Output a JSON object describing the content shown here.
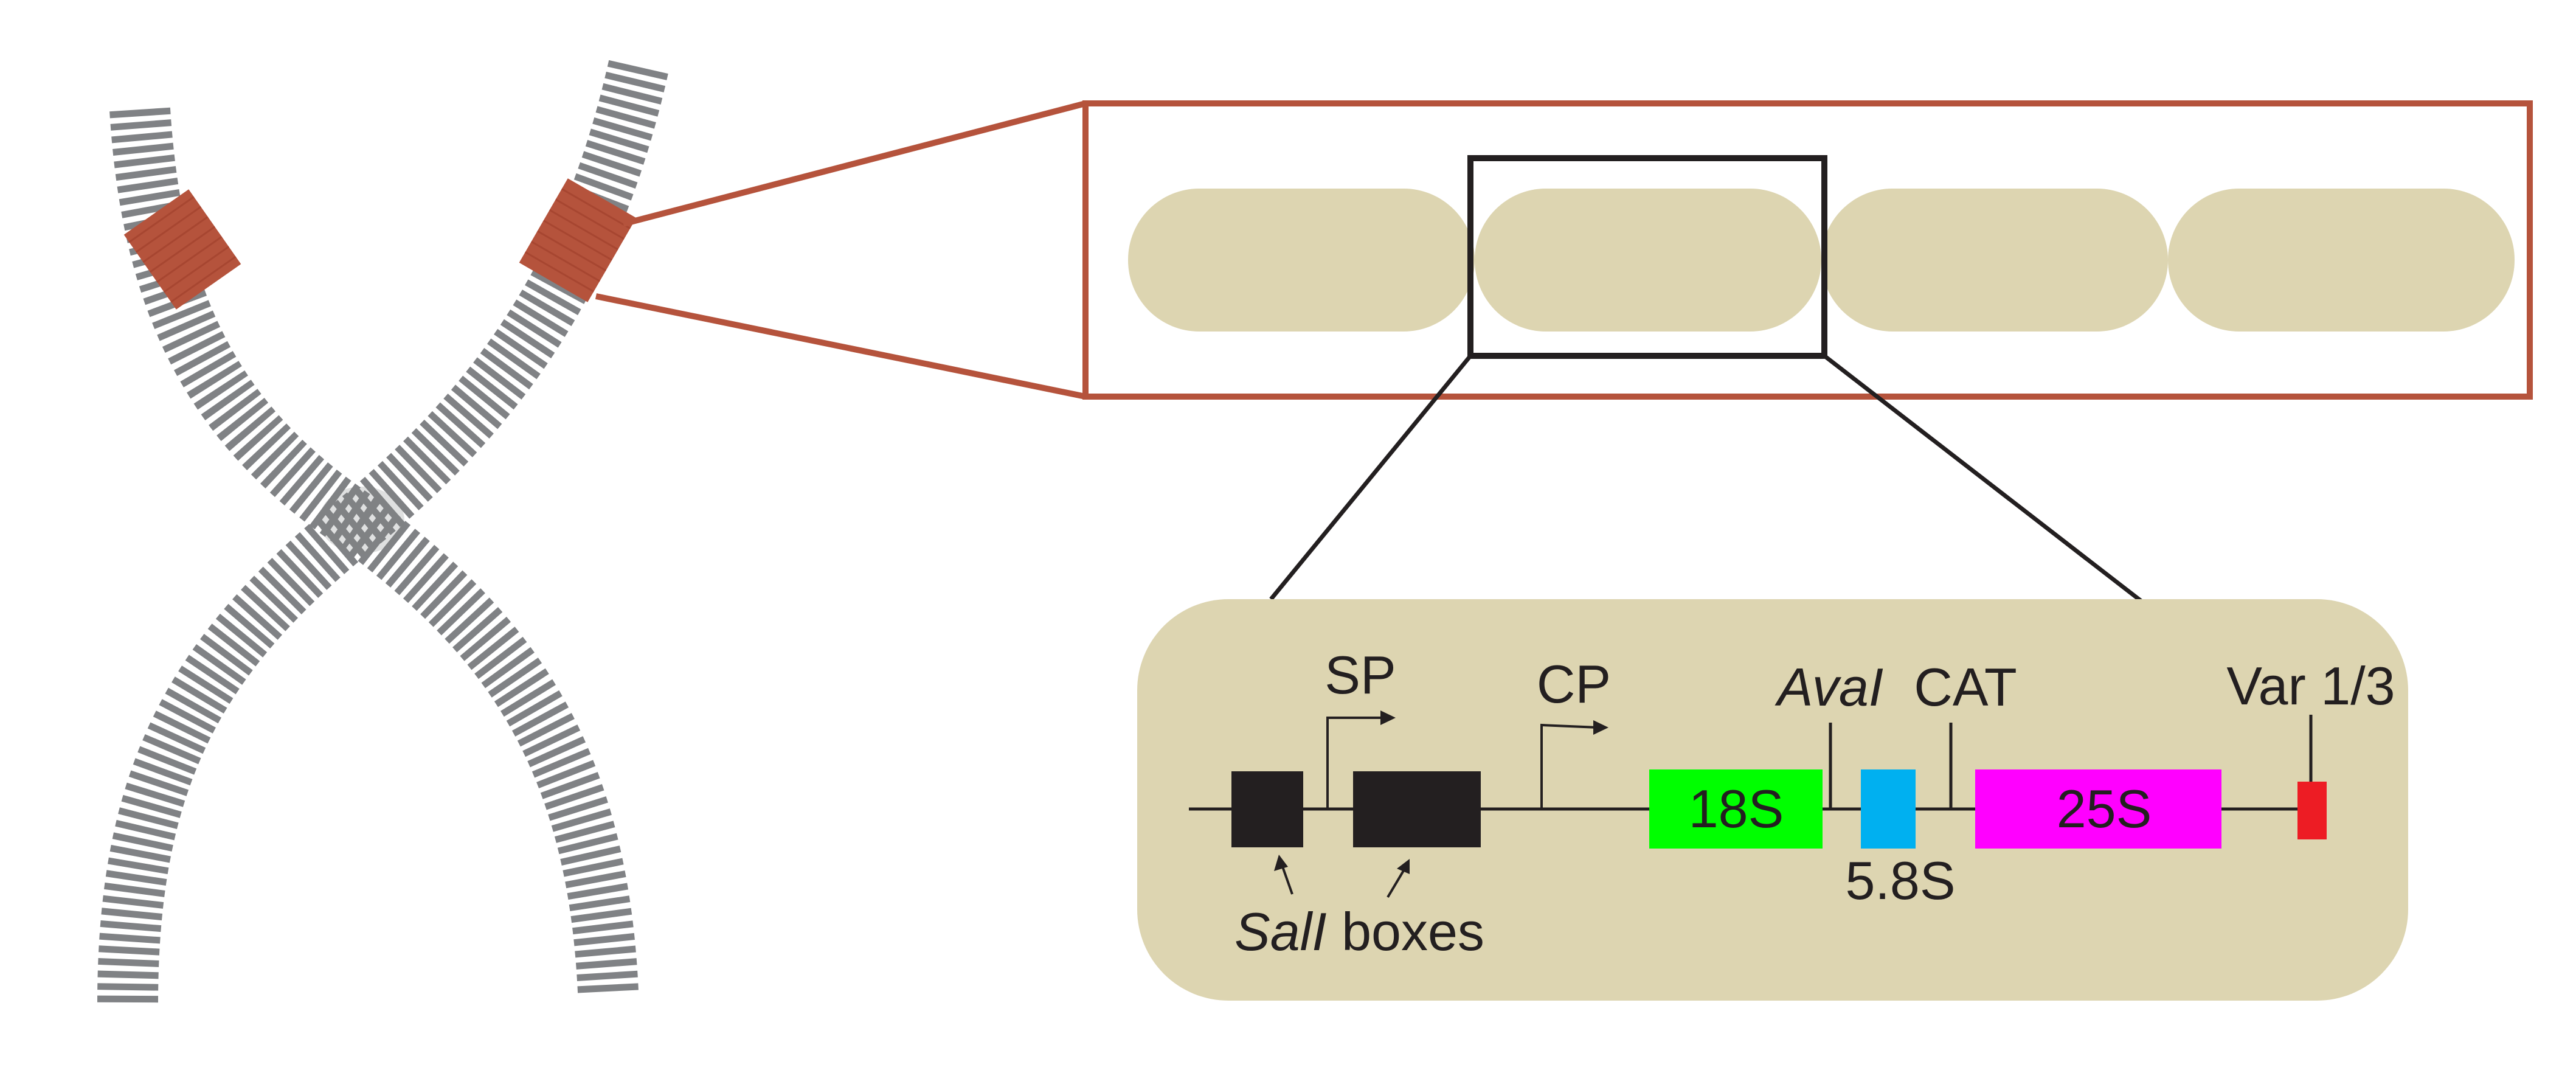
{
  "colors": {
    "chromosome_stripe": "#808285",
    "nor_band": "#b5533c",
    "zoom_frame": "#b5533c",
    "repeat_unit": "#ddd5b1",
    "block": "#231f20",
    "gene_18s": "#00ff00",
    "gene_5_8s": "#00b0f0",
    "gene_25s": "#ff00ff",
    "var_marker": "#ed1c24"
  },
  "labels": {
    "sp": "SP",
    "cp": "CP",
    "aval_italic": "AvaI",
    "cat": "CAT",
    "var": "Var 1/3",
    "gene_18s": "18S",
    "gene_5_8s": "5.8S",
    "gene_25s": "25S",
    "sall_italic": "SalI",
    "sall_suffix": " boxes"
  },
  "icons": {
    "promoter_arrow": "right-angle-arrow-icon",
    "pointer_arrow": "diagonal-arrow-icon"
  }
}
